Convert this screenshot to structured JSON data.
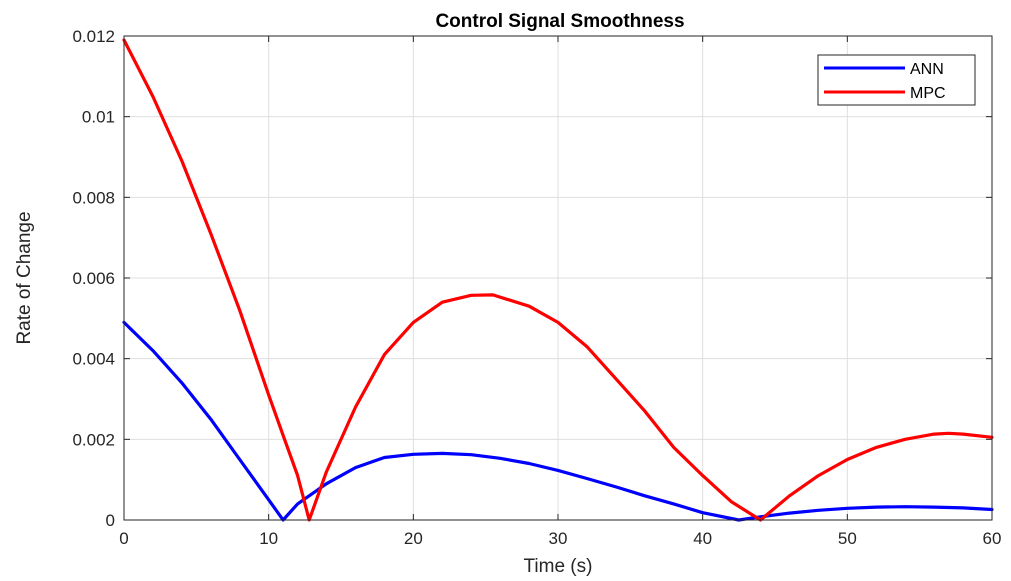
{
  "chart_data": {
    "type": "line",
    "title": "Control Signal Smoothness",
    "xlabel": "Time (s)",
    "ylabel": "Rate of Change",
    "xlim": [
      0,
      60
    ],
    "ylim": [
      0,
      0.012
    ],
    "xticks": [
      0,
      10,
      20,
      30,
      40,
      50,
      60
    ],
    "xtick_labels": [
      "0",
      "10",
      "20",
      "30",
      "40",
      "50",
      "60"
    ],
    "yticks": [
      0,
      0.002,
      0.004,
      0.006,
      0.008,
      0.01,
      0.012
    ],
    "ytick_labels": [
      "0",
      "0.002",
      "0.004",
      "0.006",
      "0.008",
      "0.01",
      "0.012"
    ],
    "grid": true,
    "legend_position": "top-right",
    "series": [
      {
        "name": "ANN",
        "color": "#0000ff",
        "x": [
          0,
          2,
          4,
          6,
          8,
          10,
          11,
          12,
          14,
          16,
          18,
          20,
          22,
          24,
          26,
          28,
          30,
          32,
          34,
          36,
          38,
          40,
          42.5,
          44,
          46,
          48,
          50,
          52,
          54,
          56,
          58,
          60
        ],
        "y": [
          0.0049,
          0.0042,
          0.0034,
          0.0025,
          0.0015,
          0.0005,
          0.0,
          0.0004,
          0.0009,
          0.0013,
          0.00155,
          0.00163,
          0.00165,
          0.00162,
          0.00153,
          0.0014,
          0.00123,
          0.00103,
          0.00082,
          0.0006,
          0.0004,
          0.00018,
          0.0,
          8e-05,
          0.00017,
          0.00024,
          0.00029,
          0.00032,
          0.00033,
          0.00032,
          0.0003,
          0.00026
        ]
      },
      {
        "name": "MPC",
        "color": "#ff0000",
        "x": [
          0,
          2,
          4,
          6,
          8,
          10,
          11,
          12,
          12.8,
          14,
          16,
          18,
          20,
          22,
          24,
          25.5,
          28,
          30,
          32,
          34,
          36,
          38,
          40,
          42,
          44,
          46,
          48,
          50,
          52,
          54,
          56,
          57,
          58,
          60
        ],
        "y": [
          0.0119,
          0.0105,
          0.0089,
          0.0071,
          0.0052,
          0.0031,
          0.0021,
          0.0011,
          0.0,
          0.0012,
          0.0028,
          0.0041,
          0.0049,
          0.0054,
          0.00557,
          0.00558,
          0.0053,
          0.0049,
          0.0043,
          0.0035,
          0.0027,
          0.0018,
          0.0011,
          0.00045,
          0.0,
          0.0006,
          0.0011,
          0.0015,
          0.0018,
          0.002,
          0.00213,
          0.00215,
          0.00213,
          0.00205
        ]
      }
    ]
  }
}
